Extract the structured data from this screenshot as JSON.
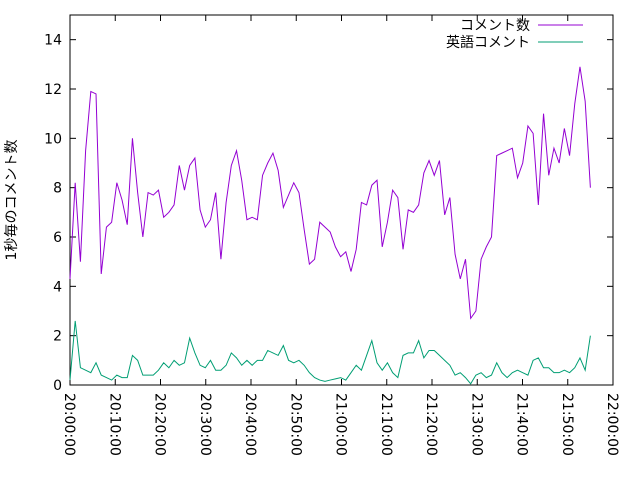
{
  "chart_data": {
    "type": "line",
    "y_label": "1秒毎のコメント数",
    "x": [
      "20:00:00",
      "20:01:09",
      "20:02:18",
      "20:03:27",
      "20:04:36",
      "20:05:45",
      "20:06:54",
      "20:08:03",
      "20:09:12",
      "20:10:21",
      "20:11:30",
      "20:12:39",
      "20:13:48",
      "20:14:57",
      "20:16:06",
      "20:17:15",
      "20:18:24",
      "20:19:33",
      "20:20:42",
      "20:21:51",
      "20:23:00",
      "20:24:09",
      "20:25:18",
      "20:26:27",
      "20:27:36",
      "20:28:45",
      "20:29:54",
      "20:31:03",
      "20:32:12",
      "20:33:21",
      "20:34:30",
      "20:35:39",
      "20:36:48",
      "20:37:57",
      "20:39:06",
      "20:40:15",
      "20:41:24",
      "20:42:33",
      "20:43:42",
      "20:44:51",
      "20:46:00",
      "20:47:09",
      "20:48:18",
      "20:49:27",
      "20:50:36",
      "20:51:45",
      "20:52:54",
      "20:54:03",
      "20:55:12",
      "20:56:21",
      "20:57:30",
      "20:58:39",
      "20:59:48",
      "21:00:57",
      "21:02:06",
      "21:03:15",
      "21:04:24",
      "21:05:33",
      "21:06:42",
      "21:07:51",
      "21:09:00",
      "21:10:09",
      "21:11:18",
      "21:12:27",
      "21:13:36",
      "21:14:45",
      "21:15:54",
      "21:17:03",
      "21:18:12",
      "21:19:21",
      "21:20:30",
      "21:21:39",
      "21:22:48",
      "21:23:57",
      "21:25:06",
      "21:26:15",
      "21:27:24",
      "21:28:33",
      "21:29:42",
      "21:30:51",
      "21:32:00",
      "21:33:09",
      "21:34:18",
      "21:35:27",
      "21:36:36",
      "21:37:45",
      "21:38:54",
      "21:40:03",
      "21:41:12",
      "21:42:21",
      "21:43:30",
      "21:44:39",
      "21:45:48",
      "21:46:57",
      "21:48:06",
      "21:49:15",
      "21:50:24",
      "21:51:33",
      "21:52:42",
      "21:53:51",
      "21:55:00"
    ],
    "series": [
      {
        "name": "コメント数",
        "color": "#9400d3",
        "values": [
          4.3,
          8.2,
          5.0,
          9.5,
          11.9,
          11.8,
          4.5,
          6.4,
          6.6,
          8.2,
          7.5,
          6.5,
          10.0,
          7.8,
          6.0,
          7.8,
          7.7,
          7.9,
          6.8,
          7.0,
          7.3,
          8.9,
          7.9,
          8.9,
          9.2,
          7.1,
          6.4,
          6.7,
          7.8,
          5.1,
          7.4,
          8.9,
          9.5,
          8.3,
          6.7,
          6.8,
          6.7,
          8.5,
          9.0,
          9.4,
          8.7,
          7.2,
          7.7,
          8.2,
          7.8,
          6.3,
          4.9,
          5.1,
          6.6,
          6.4,
          6.2,
          5.6,
          5.2,
          5.4,
          4.6,
          5.5,
          7.4,
          7.3,
          8.1,
          8.3,
          5.6,
          6.6,
          7.9,
          7.6,
          5.5,
          7.1,
          7.0,
          7.3,
          8.6,
          9.1,
          8.5,
          9.1,
          6.9,
          7.6,
          5.3,
          4.3,
          5.1,
          2.7,
          3.0,
          5.1,
          5.6,
          6.0,
          9.3,
          9.4,
          9.5,
          9.6,
          8.4,
          9.0,
          10.5,
          10.2,
          7.3,
          11.0,
          8.5,
          9.6,
          9.0,
          10.4,
          9.3,
          11.4,
          12.9,
          11.5,
          8.0
        ]
      },
      {
        "name": "英語コメント",
        "color": "#009e73",
        "values": [
          0.2,
          2.6,
          0.7,
          0.6,
          0.5,
          0.9,
          0.4,
          0.3,
          0.2,
          0.4,
          0.3,
          0.3,
          1.2,
          1.0,
          0.4,
          0.4,
          0.4,
          0.6,
          0.9,
          0.7,
          1.0,
          0.8,
          0.9,
          1.9,
          1.3,
          0.8,
          0.7,
          1.0,
          0.6,
          0.6,
          0.8,
          1.3,
          1.1,
          0.8,
          1.0,
          0.8,
          1.0,
          1.0,
          1.4,
          1.3,
          1.2,
          1.6,
          1.0,
          0.9,
          1.0,
          0.8,
          0.5,
          0.3,
          0.2,
          0.15,
          0.2,
          0.25,
          0.3,
          0.2,
          0.5,
          0.8,
          0.6,
          1.2,
          1.8,
          0.9,
          0.6,
          0.9,
          0.5,
          0.3,
          1.2,
          1.3,
          1.3,
          1.8,
          1.1,
          1.4,
          1.4,
          1.2,
          1.0,
          0.8,
          0.4,
          0.5,
          0.3,
          0.05,
          0.4,
          0.5,
          0.3,
          0.4,
          0.9,
          0.5,
          0.3,
          0.5,
          0.6,
          0.5,
          0.4,
          1.0,
          1.1,
          0.7,
          0.7,
          0.5,
          0.5,
          0.6,
          0.5,
          0.7,
          1.1,
          0.6,
          2.0
        ]
      }
    ],
    "xlim": [
      "20:00:00",
      "22:00:00"
    ],
    "xticks": [
      "20:00:00",
      "20:10:00",
      "20:20:00",
      "20:30:00",
      "20:40:00",
      "20:50:00",
      "21:00:00",
      "21:10:00",
      "21:20:00",
      "21:30:00",
      "21:40:00",
      "21:50:00",
      "22:00:00"
    ],
    "ylim": [
      0,
      15
    ],
    "yticks": [
      0,
      2,
      4,
      6,
      8,
      10,
      12,
      14
    ],
    "legend": "top-right"
  }
}
